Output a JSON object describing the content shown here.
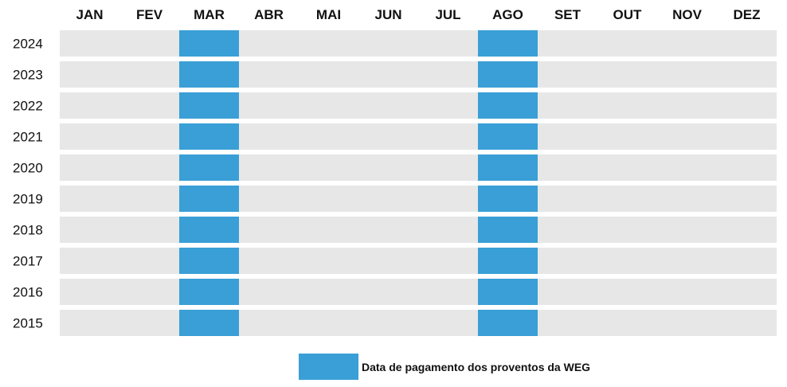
{
  "chart_data": {
    "type": "heatmap",
    "categories": [
      "JAN",
      "FEV",
      "MAR",
      "ABR",
      "MAI",
      "JUN",
      "JUL",
      "AGO",
      "SET",
      "OUT",
      "NOV",
      "DEZ"
    ],
    "years": [
      "2024",
      "2023",
      "2022",
      "2021",
      "2020",
      "2019",
      "2018",
      "2017",
      "2016",
      "2015"
    ],
    "highlighted_months": [
      "MAR",
      "AGO"
    ],
    "legend": {
      "label": "Data de pagamento dos proventos da WEG",
      "placement": "bottom-center"
    },
    "colors": {
      "highlight": "#3a9fd6",
      "empty": "#e7e7e7"
    }
  }
}
